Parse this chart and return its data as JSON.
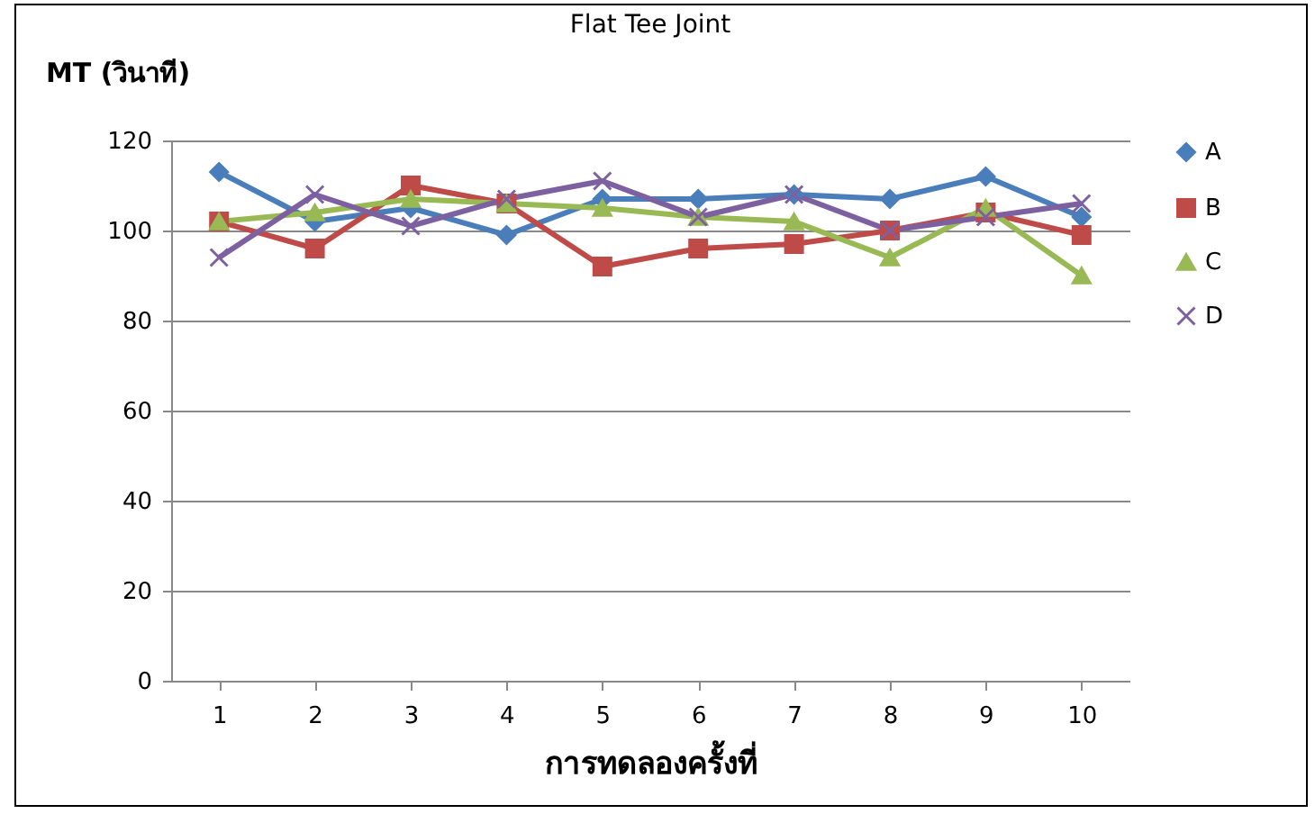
{
  "chart_data": {
    "type": "line",
    "title": "Flat Tee Joint",
    "ylabel": "MT (วินาที)",
    "xlabel": "การทดลองครั้งที่",
    "categories": [
      "1",
      "2",
      "3",
      "4",
      "5",
      "6",
      "7",
      "8",
      "9",
      "10"
    ],
    "series": [
      {
        "name": "A",
        "color": "#4a7ebb",
        "marker": "diamond",
        "values": [
          113,
          102,
          105,
          99,
          107,
          107,
          108,
          107,
          112,
          103
        ]
      },
      {
        "name": "B",
        "color": "#be4b48",
        "marker": "square",
        "values": [
          102,
          96,
          110,
          106,
          92,
          96,
          97,
          100,
          104,
          99
        ]
      },
      {
        "name": "C",
        "color": "#98b954",
        "marker": "triangle",
        "values": [
          102,
          104,
          107,
          106,
          105,
          103,
          102,
          94,
          105,
          90
        ]
      },
      {
        "name": "D",
        "color": "#7d60a0",
        "marker": "cross",
        "values": [
          94,
          108,
          101,
          107,
          111,
          103,
          108,
          100,
          103,
          106
        ]
      }
    ],
    "ylim": [
      0,
      120
    ],
    "yticks": [
      0,
      20,
      40,
      60,
      80,
      100,
      120
    ],
    "grid": "y",
    "legend": "right",
    "line_style": "solid"
  }
}
